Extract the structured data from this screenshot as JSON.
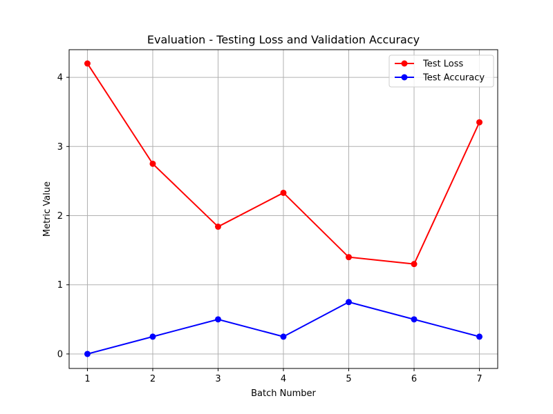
{
  "chart_data": {
    "type": "line",
    "title": "Evaluation - Testing Loss and Validation Accuracy",
    "xlabel": "Batch Number",
    "ylabel": "Metric Value",
    "x": [
      1,
      2,
      3,
      4,
      5,
      6,
      7
    ],
    "xticks": [
      "1",
      "2",
      "3",
      "4",
      "5",
      "6",
      "7"
    ],
    "yticks": [
      "0",
      "1",
      "2",
      "3",
      "4"
    ],
    "xlim": [
      0.72,
      7.28
    ],
    "ylim": [
      -0.21,
      4.4
    ],
    "grid": true,
    "legend_position": "top-right",
    "series": [
      {
        "name": "Test Loss",
        "color": "#ff0000",
        "marker": "circle",
        "values": [
          4.2,
          2.75,
          1.84,
          2.33,
          1.4,
          1.3,
          3.35
        ]
      },
      {
        "name": "Test Accuracy",
        "color": "#0000ff",
        "marker": "circle",
        "values": [
          0.0,
          0.25,
          0.5,
          0.25,
          0.75,
          0.5,
          0.25
        ]
      }
    ]
  }
}
